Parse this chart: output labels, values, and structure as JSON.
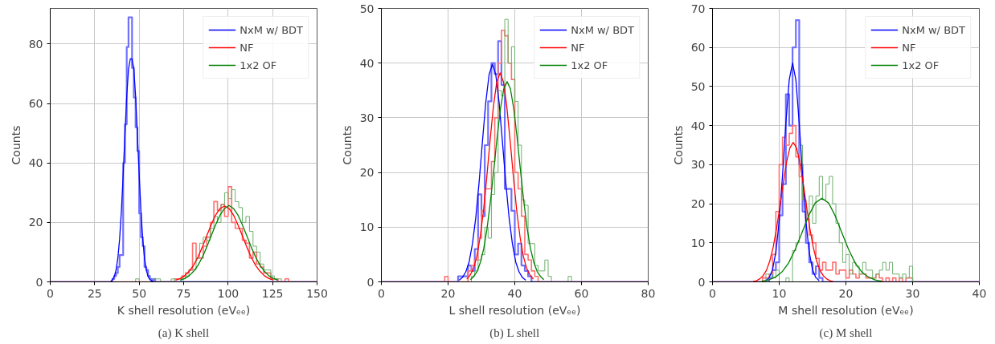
{
  "chart_data": [
    {
      "type": "step",
      "xlabel": "K shell resolution (eVₑₑ)",
      "ylabel": "Counts",
      "annotations": [
        "(a) K shell"
      ],
      "xlim": [
        0,
        150
      ],
      "ylim": [
        0,
        92
      ],
      "xticks": [
        0,
        25,
        50,
        75,
        100,
        125,
        150
      ],
      "yticks": [
        0,
        20,
        40,
        60,
        80
      ],
      "grid": true,
      "legend": "top right",
      "series": [
        {
          "color": "#7070ff",
          "x": [
            0,
            35,
            36,
            37,
            38,
            39,
            40,
            41,
            42,
            43,
            44,
            45,
            46,
            47,
            48,
            49,
            50,
            51,
            52,
            53,
            54,
            55,
            56,
            57,
            58,
            59,
            150
          ],
          "values": [
            0,
            1,
            2,
            3,
            5,
            9,
            9,
            40,
            53,
            79,
            89,
            89,
            72,
            62,
            52,
            44,
            23,
            15,
            12,
            5,
            4,
            2,
            1,
            0,
            1,
            0,
            0
          ]
        },
        {
          "color": "#ff7070",
          "x": [
            0,
            70,
            72,
            74,
            76,
            78,
            80,
            82,
            84,
            86,
            88,
            90,
            92,
            94,
            96,
            98,
            100,
            102,
            104,
            106,
            108,
            110,
            112,
            114,
            116,
            118,
            120,
            122,
            124,
            126,
            128,
            132,
            134,
            150
          ],
          "values": [
            0,
            1,
            1,
            2,
            3,
            4,
            13,
            8,
            8,
            12,
            15,
            20,
            27,
            24,
            26,
            22,
            32,
            20,
            18,
            18,
            14,
            13,
            8,
            10,
            6,
            5,
            3,
            3,
            1,
            1,
            0,
            1,
            0,
            0
          ]
        },
        {
          "color": "#70b070",
          "x": [
            0,
            48,
            50,
            58,
            60,
            62,
            68,
            70,
            74,
            76,
            78,
            80,
            82,
            84,
            86,
            88,
            90,
            92,
            94,
            96,
            98,
            100,
            102,
            104,
            106,
            108,
            110,
            112,
            114,
            116,
            118,
            120,
            122,
            124,
            126,
            128,
            130,
            150
          ],
          "values": [
            0,
            1,
            0,
            1,
            1,
            0,
            1,
            0,
            1,
            2,
            4,
            4,
            8,
            13,
            15,
            14,
            18,
            22,
            20,
            26,
            30,
            28,
            31,
            27,
            25,
            20,
            22,
            17,
            12,
            10,
            6,
            4,
            4,
            2,
            1,
            1,
            0,
            0
          ]
        },
        {
          "type": "line",
          "name": "NxM w/ BDT",
          "color": "#0000ff",
          "x": [
            34,
            35,
            36,
            37,
            38,
            39,
            40,
            41,
            42,
            43,
            44,
            45,
            46,
            47,
            48,
            49,
            50,
            51,
            52,
            53,
            54,
            55,
            56,
            57,
            58
          ],
          "values": [
            0.1,
            0.8,
            1.8,
            4.0,
            7.9,
            14.4,
            23.8,
            36,
            49.6,
            62.4,
            71.6,
            75,
            75,
            71.6,
            62.4,
            49.6,
            36,
            23.8,
            14.4,
            7.9,
            4.0,
            1.8,
            0.8,
            0.3,
            0.1
          ]
        },
        {
          "type": "line",
          "name": "NF",
          "color": "#ff0000",
          "x": [
            70.5,
            73,
            75.5,
            78,
            80.5,
            83,
            85.5,
            88,
            90.5,
            93,
            95.5,
            98,
            100.5,
            103,
            105.5,
            108,
            110.5,
            113,
            115.5,
            118,
            120.5,
            123,
            125.5
          ],
          "values": [
            0.6,
            1.1,
            2.0,
            3.5,
            5.5,
            8.3,
            11.7,
            15.5,
            19.2,
            22.5,
            24.7,
            25.5,
            24.7,
            22.5,
            19.2,
            15.5,
            11.7,
            8.3,
            5.5,
            3.5,
            2.0,
            1.1,
            0.6
          ]
        },
        {
          "type": "line",
          "name": "1x2 OF",
          "color": "#008000",
          "x": [
            73,
            75.5,
            78,
            80.5,
            83,
            85.5,
            88,
            90.5,
            93,
            95.5,
            98,
            100.5,
            103,
            105.5,
            108,
            110.5,
            113,
            115.5,
            118,
            120.5,
            123,
            125.5,
            128
          ],
          "values": [
            0.6,
            1.1,
            2.0,
            3.5,
            5.5,
            8.3,
            11.7,
            15.5,
            19.2,
            22.5,
            24.7,
            25.7,
            24.7,
            22.5,
            19.2,
            15.5,
            11.7,
            8.3,
            5.5,
            3.5,
            2.0,
            1.1,
            0.6
          ]
        }
      ]
    },
    {
      "type": "step",
      "xlabel": "L shell resolution (eVₑₑ)",
      "ylabel": "Counts",
      "annotations": [
        "(b) L shell"
      ],
      "xlim": [
        0,
        80
      ],
      "ylim": [
        0,
        50
      ],
      "xticks": [
        0,
        20,
        40,
        60,
        80
      ],
      "yticks": [
        0,
        10,
        20,
        30,
        40,
        50
      ],
      "grid": true,
      "legend": "top right",
      "series": [
        {
          "color": "#7070ff",
          "x": [
            0,
            23,
            24,
            25,
            26,
            27,
            28,
            29,
            30,
            31,
            32,
            33,
            34,
            35,
            36,
            37,
            38,
            39,
            40,
            41,
            42,
            43,
            44,
            45,
            80
          ],
          "values": [
            0,
            1,
            1,
            1,
            3,
            2,
            6,
            16,
            12,
            25,
            33,
            40,
            38,
            44,
            36,
            17,
            17,
            13,
            5,
            7,
            3,
            2,
            1,
            0,
            0
          ]
        },
        {
          "color": "#ff7070",
          "x": [
            0,
            19,
            20,
            26,
            27,
            28,
            29,
            30,
            31,
            32,
            33,
            34,
            35,
            36,
            37,
            38,
            39,
            40,
            41,
            42,
            43,
            44,
            45,
            46,
            47,
            80
          ],
          "values": [
            0,
            1,
            0,
            2,
            3,
            4,
            8,
            13,
            17,
            17,
            22,
            30,
            40,
            46,
            45,
            40,
            37,
            20,
            17,
            12,
            5,
            4,
            2,
            1,
            0,
            0
          ]
        },
        {
          "color": "#70b070",
          "x": [
            0,
            27,
            28,
            29,
            30,
            31,
            32,
            33,
            34,
            35,
            36,
            37,
            38,
            39,
            40,
            41,
            42,
            43,
            44,
            45,
            46,
            47,
            48,
            49,
            50,
            51,
            56,
            57,
            80
          ],
          "values": [
            0,
            1,
            2,
            4,
            5,
            10,
            8,
            16,
            20,
            35,
            34,
            48,
            40,
            43,
            33,
            25,
            15,
            14,
            7,
            7,
            3,
            2,
            2,
            4,
            1,
            0,
            1,
            0,
            0
          ]
        },
        {
          "type": "line",
          "name": "NxM w/ BDT",
          "color": "#0000ff",
          "x": [
            23.3,
            24.3,
            25.3,
            26.3,
            27.3,
            28.3,
            29.3,
            30.3,
            31.3,
            32.3,
            33.3,
            34.3,
            35.3,
            36.3,
            37.3,
            38.3,
            39.3,
            40.3,
            41.3,
            42.3,
            43.3
          ],
          "values": [
            0.3,
            0.8,
            1.8,
            3.6,
            6.9,
            11.7,
            18.2,
            25.6,
            32.8,
            37.9,
            39.8,
            37.9,
            32.8,
            25.6,
            18.2,
            11.7,
            6.9,
            3.6,
            1.8,
            0.8,
            0.3
          ]
        },
        {
          "type": "line",
          "name": "NF",
          "color": "#ff0000",
          "x": [
            25.6,
            26.6,
            27.6,
            28.6,
            29.6,
            30.6,
            31.6,
            32.6,
            33.6,
            34.6,
            35.6,
            36.6,
            37.6,
            38.6,
            39.6,
            40.6,
            41.6,
            42.6,
            43.6,
            44.6,
            45.6
          ],
          "values": [
            0.5,
            1.2,
            2.4,
            4.6,
            8.1,
            12.9,
            19.1,
            25.9,
            32.1,
            36.6,
            38.2,
            36.6,
            32.1,
            25.9,
            19.1,
            12.9,
            8.1,
            4.6,
            2.4,
            1.2,
            0.5
          ]
        },
        {
          "type": "line",
          "name": "1x2 OF",
          "color": "#008000",
          "x": [
            26.7,
            27.7,
            28.7,
            29.7,
            30.7,
            31.7,
            32.7,
            33.7,
            34.7,
            35.7,
            36.7,
            37.7,
            38.7,
            39.7,
            40.7,
            41.7,
            42.7,
            43.7,
            44.7,
            45.7,
            46.7,
            47.7,
            48.7
          ],
          "values": [
            0.4,
            1.0,
            1.9,
            3.6,
            6.1,
            9.8,
            14.7,
            20.4,
            26.4,
            31.6,
            35.3,
            36.6,
            35.3,
            31.6,
            26.4,
            20.4,
            14.7,
            9.8,
            6.1,
            3.6,
            1.9,
            1.0,
            0.4
          ]
        }
      ]
    },
    {
      "type": "step",
      "xlabel": "M shell resolution (eVₑₑ)",
      "ylabel": "Counts",
      "annotations": [
        "(c) M shell"
      ],
      "xlim": [
        0,
        40
      ],
      "ylim": [
        0,
        70
      ],
      "xticks": [
        0,
        10,
        20,
        30,
        40
      ],
      "yticks": [
        0,
        10,
        20,
        30,
        40,
        50,
        60,
        70
      ],
      "grid": true,
      "legend": "top right",
      "series": [
        {
          "color": "#7070ff",
          "x": [
            0,
            8.5,
            9,
            9.5,
            10,
            10.5,
            11,
            11.5,
            12,
            12.5,
            13,
            13.5,
            14,
            14.5,
            15,
            15.5,
            16,
            16.5,
            40
          ],
          "values": [
            0,
            1,
            3,
            5,
            17,
            25,
            48,
            40,
            60,
            67,
            30,
            18,
            10,
            5,
            2,
            4,
            1,
            0,
            0
          ]
        },
        {
          "color": "#ff7070",
          "x": [
            0,
            7.5,
            8,
            8.5,
            9,
            9.5,
            10,
            10.5,
            11,
            11.5,
            12,
            12.5,
            13,
            13.5,
            14,
            14.5,
            15,
            15.5,
            16,
            16.5,
            17,
            17.5,
            18,
            18.5,
            19,
            19.5,
            20,
            20.5,
            21,
            21.5,
            22,
            22.5,
            23,
            23.5,
            24,
            24.5,
            25,
            25.5,
            26,
            26.5,
            27,
            27.5,
            28,
            28.5,
            29,
            29.5,
            30,
            40
          ],
          "values": [
            0,
            1,
            1,
            2,
            7,
            18,
            30,
            37,
            35,
            38,
            40,
            32,
            27,
            21,
            16,
            12,
            10,
            6,
            3,
            5,
            3,
            3,
            5,
            2,
            3,
            3,
            1,
            3,
            2,
            1,
            2,
            2,
            1,
            1,
            1,
            2,
            1,
            0,
            1,
            0,
            1,
            0,
            1,
            0,
            1,
            1,
            0,
            0
          ]
        },
        {
          "color": "#70b070",
          "x": [
            0,
            8,
            8.5,
            9,
            9.5,
            10,
            11,
            11.5,
            12,
            12.5,
            13,
            13.5,
            14,
            14.5,
            15,
            15.5,
            16,
            16.5,
            17,
            17.5,
            18,
            18.5,
            19,
            19.5,
            20,
            20.5,
            21,
            21.5,
            22,
            22.5,
            23,
            23.5,
            24,
            24.5,
            25,
            25.5,
            26,
            26.5,
            27,
            27.5,
            28,
            28.5,
            29,
            29.5,
            30,
            40
          ],
          "values": [
            0,
            2,
            2,
            1,
            3,
            0,
            1,
            0,
            8,
            10,
            35,
            21,
            16,
            22,
            15,
            22,
            27,
            21,
            25,
            27,
            20,
            15,
            10,
            5,
            7,
            2,
            5,
            4,
            2,
            5,
            3,
            3,
            1,
            2,
            3,
            5,
            3,
            5,
            2,
            2,
            1,
            2,
            1,
            4,
            0,
            0
          ]
        },
        {
          "type": "line",
          "name": "NxM w/ BDT",
          "color": "#0000ff",
          "x": [
            8,
            8.5,
            9,
            9.5,
            10,
            10.5,
            11,
            11.5,
            12,
            12.5,
            13,
            13.5,
            14,
            14.5,
            15,
            15.5,
            16
          ],
          "values": [
            0.3,
            1.1,
            3.1,
            7.6,
            15.6,
            27.3,
            40.7,
            51.7,
            56,
            51.7,
            40.7,
            27.3,
            15.6,
            7.6,
            3.1,
            1.1,
            0.3
          ]
        },
        {
          "type": "line",
          "name": "NF",
          "color": "#ff0000",
          "x": [
            6.1,
            6.6,
            7.1,
            7.6,
            8.1,
            8.6,
            9.1,
            9.6,
            10.1,
            10.6,
            11.1,
            11.6,
            12.1,
            12.6,
            13.1,
            13.6,
            14.1,
            14.6,
            15.1,
            15.6,
            16.1,
            16.6,
            17.1,
            17.6,
            18.1
          ],
          "values": [
            0.1,
            0.3,
            0.8,
            1.6,
            3.0,
            5.4,
            8.9,
            13.6,
            19.3,
            25.2,
            30.6,
            34.3,
            35.7,
            34.3,
            30.6,
            25.2,
            19.3,
            13.6,
            8.9,
            5.4,
            3.0,
            1.6,
            0.8,
            0.3,
            0.1
          ]
        },
        {
          "type": "line",
          "name": "1x2 OF",
          "color": "#008000",
          "x": [
            7.4,
            8.4,
            9.4,
            10.4,
            11.4,
            12.4,
            13.4,
            14.4,
            15.4,
            16.4,
            17.4,
            18.4,
            19.4,
            20.4,
            21.4,
            22.4,
            23.4,
            24.4,
            25.4
          ],
          "values": [
            0.2,
            0.5,
            1.2,
            2.5,
            4.8,
            8.3,
            12.5,
            16.9,
            20.2,
            21.4,
            20.2,
            16.9,
            12.5,
            8.3,
            4.8,
            2.5,
            1.2,
            0.5,
            0.2
          ]
        }
      ]
    }
  ]
}
